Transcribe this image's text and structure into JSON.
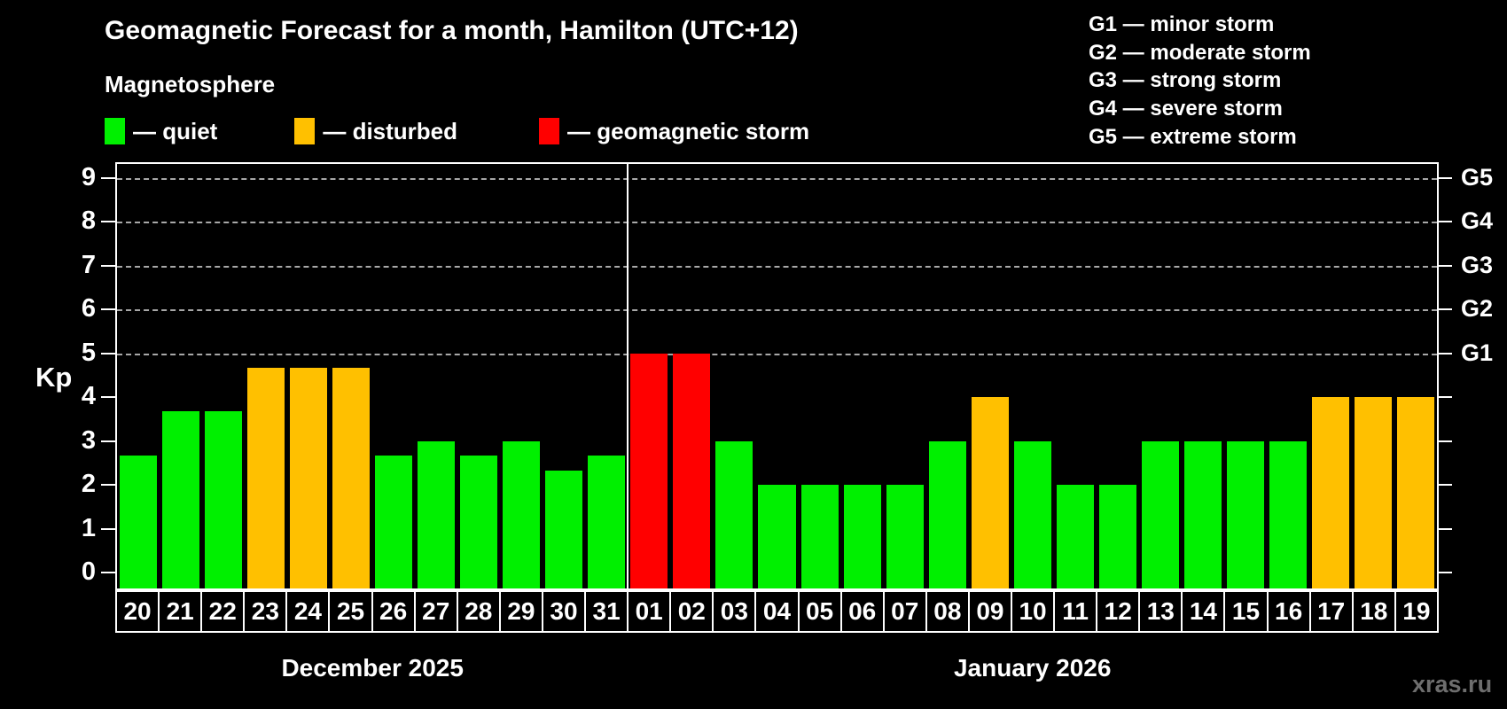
{
  "title": "Geomagnetic Forecast for a month, Hamilton (UTC+12)",
  "subtitle": "Magnetosphere",
  "legend": {
    "quiet_label": "— quiet",
    "disturbed_label": "— disturbed",
    "storm_label": "— geomagnetic storm"
  },
  "g_legend": [
    "G1 — minor storm",
    "G2 — moderate storm",
    "G3 — strong storm",
    "G4 — severe storm",
    "G5 — extreme storm"
  ],
  "y_axis_label": "Kp",
  "watermark": "xras.ru",
  "chart_data": {
    "type": "bar",
    "ylabel": "Kp",
    "ylim": [
      0,
      9.7
    ],
    "yticks": [
      0,
      1,
      2,
      3,
      4,
      5,
      6,
      7,
      8,
      9
    ],
    "gridlines_at": [
      5,
      6,
      7,
      8,
      9
    ],
    "grid": "dashed, only at storm levels 5-9",
    "right_axis_labels": [
      {
        "kp": 5,
        "label": "G1"
      },
      {
        "kp": 6,
        "label": "G2"
      },
      {
        "kp": 7,
        "label": "G3"
      },
      {
        "kp": 8,
        "label": "G4"
      },
      {
        "kp": 9,
        "label": "G5"
      }
    ],
    "legend_position": "top-left",
    "months": [
      {
        "label": "December 2025",
        "start_index": 0,
        "days": 12
      },
      {
        "label": "January 2026",
        "start_index": 12,
        "days": 19
      }
    ],
    "categories": [
      "20",
      "21",
      "22",
      "23",
      "24",
      "25",
      "26",
      "27",
      "28",
      "29",
      "30",
      "31",
      "01",
      "02",
      "03",
      "04",
      "05",
      "06",
      "07",
      "08",
      "09",
      "10",
      "11",
      "12",
      "13",
      "14",
      "15",
      "16",
      "17",
      "18",
      "19"
    ],
    "values": [
      2.67,
      3.67,
      3.67,
      4.67,
      4.67,
      4.67,
      2.67,
      3.0,
      2.67,
      3.0,
      2.33,
      2.67,
      5.0,
      5.0,
      3.0,
      2.0,
      2.0,
      2.0,
      2.0,
      3.0,
      4.0,
      3.0,
      2.0,
      2.0,
      3.0,
      3.0,
      3.0,
      3.0,
      4.0,
      4.0,
      4.0
    ],
    "status": [
      "quiet",
      "quiet",
      "quiet",
      "disturbed",
      "disturbed",
      "disturbed",
      "quiet",
      "quiet",
      "quiet",
      "quiet",
      "quiet",
      "quiet",
      "storm",
      "storm",
      "quiet",
      "quiet",
      "quiet",
      "quiet",
      "quiet",
      "quiet",
      "disturbed",
      "quiet",
      "quiet",
      "quiet",
      "quiet",
      "quiet",
      "quiet",
      "quiet",
      "disturbed",
      "disturbed",
      "disturbed"
    ],
    "colors": {
      "quiet": "#00f000",
      "disturbed": "#ffc000",
      "storm": "#ff0000",
      "background": "#000000",
      "axis": "#ffffff",
      "gridline": "#a8a8a8",
      "watermark": "#6e6e6e"
    }
  }
}
